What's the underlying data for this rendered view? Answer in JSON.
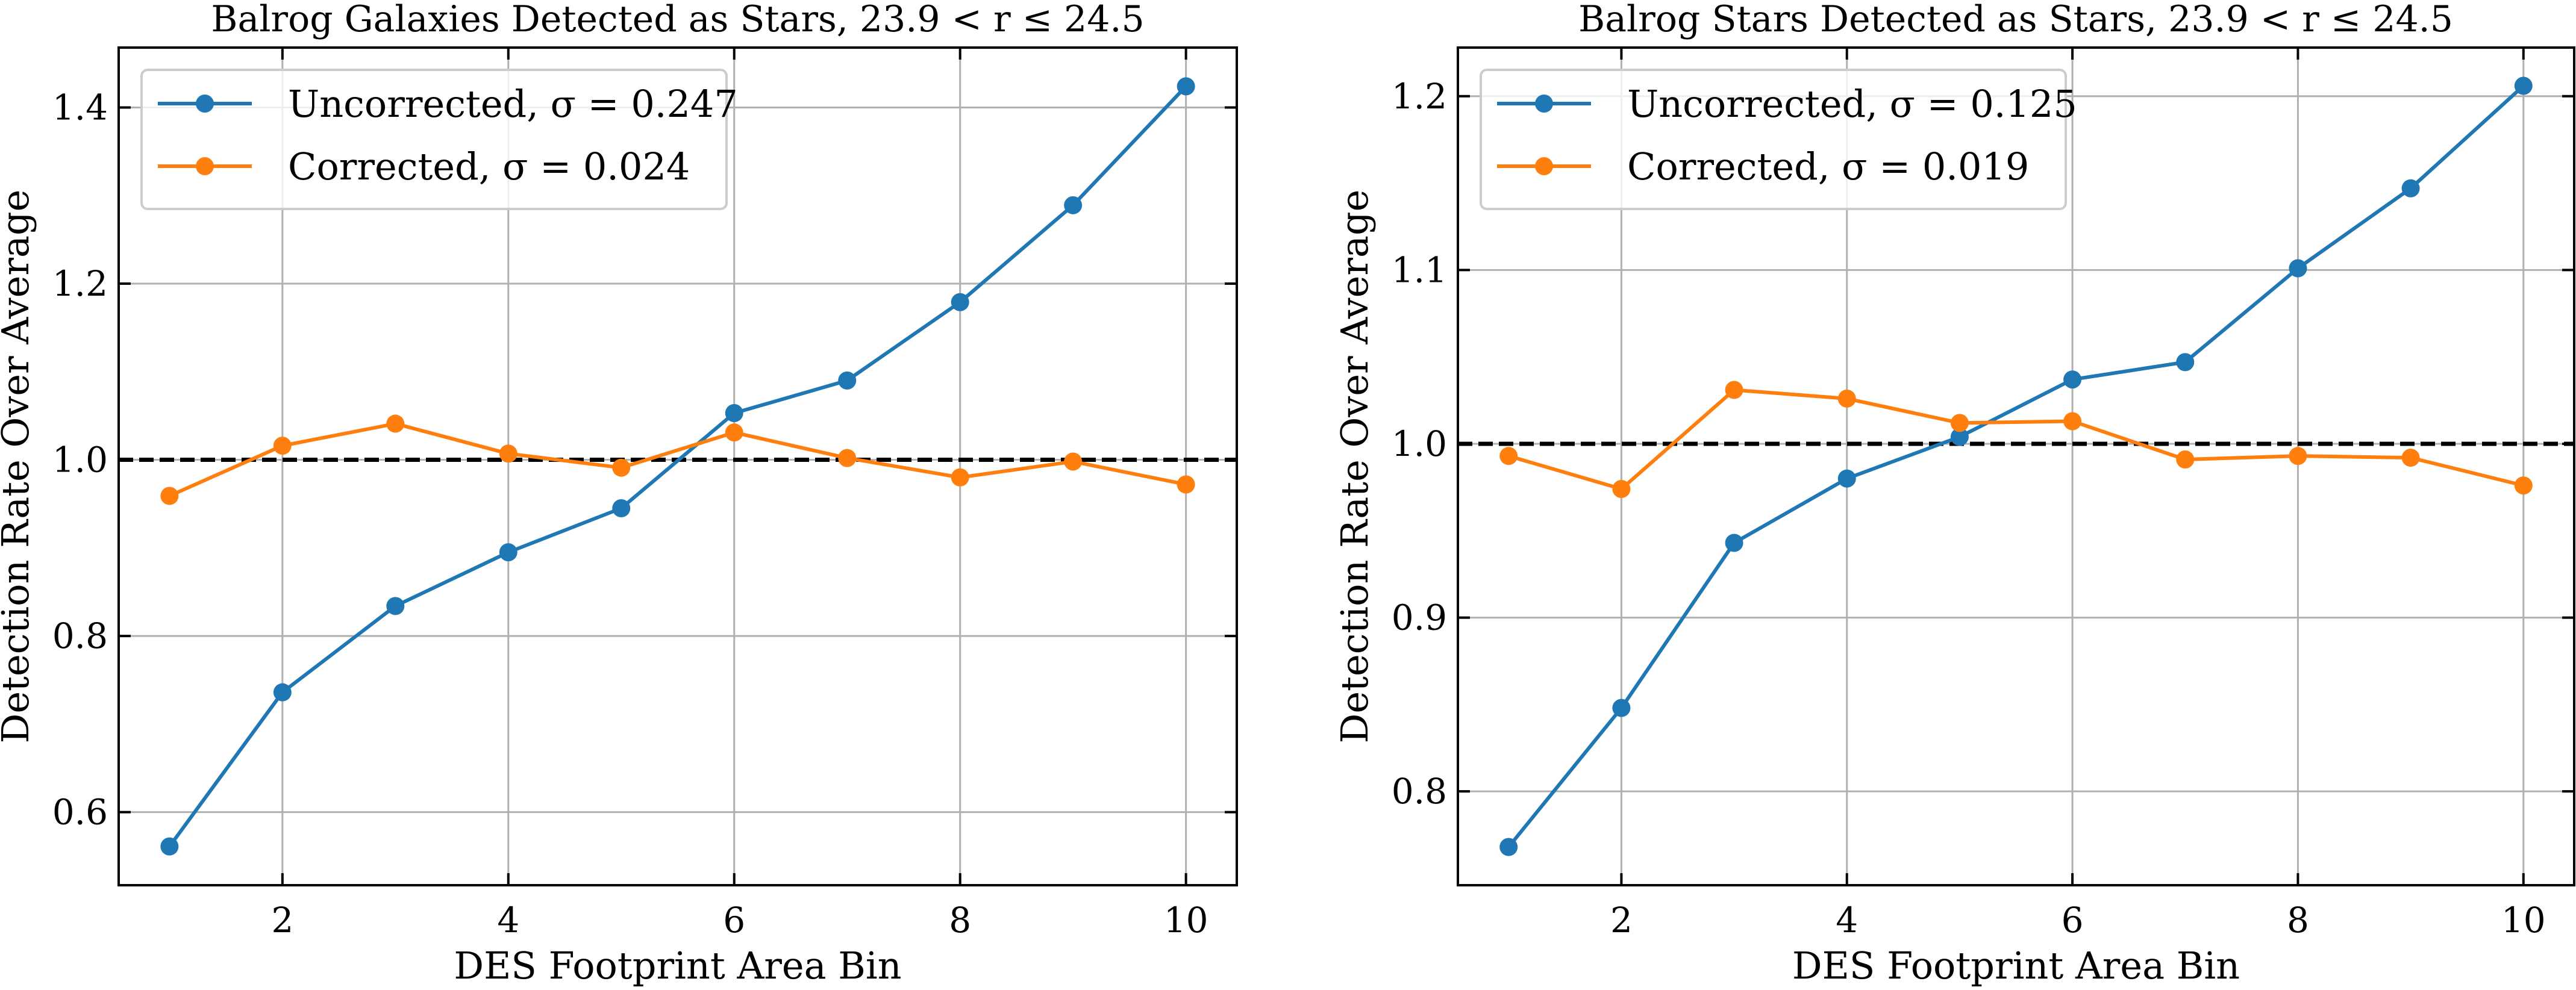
{
  "figure": {
    "colors": {
      "uncorrected": "#1f77b4",
      "corrected": "#ff7f0e",
      "reference_line": "#000000",
      "grid": "#b0b0b0",
      "legend_border": "#cccccc"
    }
  },
  "chart_data": [
    {
      "type": "line",
      "title": "Balrog Galaxies Detected as Stars, 23.9 < r ≤ 24.5",
      "xlabel": "DES Footprint Area Bin",
      "ylabel": "Detection Rate Over Average",
      "x": [
        1,
        2,
        3,
        4,
        5,
        6,
        7,
        8,
        9,
        10
      ],
      "xlim": [
        0.55,
        10.45
      ],
      "ylim": [
        0.517,
        1.468
      ],
      "xticks": [
        2,
        4,
        6,
        8,
        10
      ],
      "xtick_labels": [
        "2",
        "4",
        "6",
        "8",
        "10"
      ],
      "yticks": [
        0.6,
        0.8,
        1.0,
        1.2,
        1.4
      ],
      "ytick_labels": [
        "0.6",
        "0.8",
        "1.0",
        "1.2",
        "1.4"
      ],
      "grid": true,
      "reference_line": {
        "y": 1.0,
        "style": "dashed"
      },
      "legend_position": "top-left",
      "series": [
        {
          "name": "Uncorrected, σ = 0.247",
          "color_key": "uncorrected",
          "values": [
            0.561,
            0.736,
            0.834,
            0.895,
            0.945,
            1.053,
            1.09,
            1.179,
            1.289,
            1.424
          ]
        },
        {
          "name": "Corrected, σ = 0.024",
          "color_key": "corrected",
          "values": [
            0.959,
            1.016,
            1.041,
            1.007,
            0.991,
            1.031,
            1.002,
            0.98,
            0.998,
            0.972
          ]
        }
      ]
    },
    {
      "type": "line",
      "title": "Balrog Stars Detected as Stars, 23.9 < r ≤ 24.5",
      "xlabel": "DES Footprint Area Bin",
      "ylabel": "Detection Rate Over Average",
      "x": [
        1,
        2,
        3,
        4,
        5,
        6,
        7,
        8,
        9,
        10
      ],
      "xlim": [
        0.55,
        10.45
      ],
      "ylim": [
        0.746,
        1.228
      ],
      "xticks": [
        2,
        4,
        6,
        8,
        10
      ],
      "xtick_labels": [
        "2",
        "4",
        "6",
        "8",
        "10"
      ],
      "yticks": [
        0.8,
        0.9,
        1.0,
        1.1,
        1.2
      ],
      "ytick_labels": [
        "0.8",
        "0.9",
        "1.0",
        "1.1",
        "1.2"
      ],
      "grid": true,
      "reference_line": {
        "y": 1.0,
        "style": "dashed"
      },
      "legend_position": "top-left",
      "series": [
        {
          "name": "Uncorrected, σ = 0.125",
          "color_key": "uncorrected",
          "values": [
            0.768,
            0.848,
            0.943,
            0.98,
            1.004,
            1.037,
            1.047,
            1.101,
            1.147,
            1.206
          ]
        },
        {
          "name": "Corrected, σ = 0.019",
          "color_key": "corrected",
          "values": [
            0.993,
            0.974,
            1.031,
            1.026,
            1.012,
            1.013,
            0.991,
            0.993,
            0.992,
            0.976
          ]
        }
      ]
    }
  ]
}
